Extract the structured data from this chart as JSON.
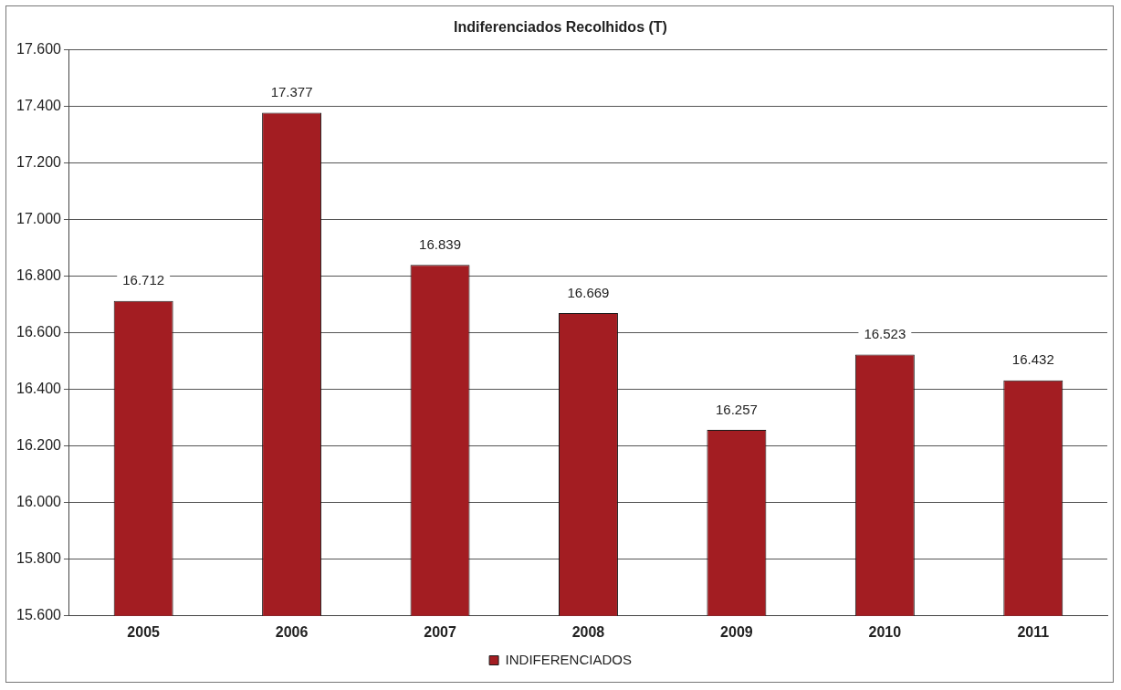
{
  "chart_data": {
    "type": "bar",
    "title": "Indiferenciados Recolhidos (T)",
    "categories": [
      "2005",
      "2006",
      "2007",
      "2008",
      "2009",
      "2010",
      "2011"
    ],
    "series": [
      {
        "name": "INDIFERENCIADOS",
        "color": "#a31d22",
        "values": [
          16712,
          17377,
          16839,
          16669,
          16257,
          16523,
          16432
        ],
        "value_labels": [
          "16.712",
          "17.377",
          "16.839",
          "16.669",
          "16.257",
          "16.523",
          "16.432"
        ]
      }
    ],
    "ylim": [
      15600,
      17600
    ],
    "yticks": [
      {
        "value": 15600,
        "label": "15.600"
      },
      {
        "value": 15800,
        "label": "15.800"
      },
      {
        "value": 16000,
        "label": "16.000"
      },
      {
        "value": 16200,
        "label": "16.200"
      },
      {
        "value": 16400,
        "label": "16.400"
      },
      {
        "value": 16600,
        "label": "16.600"
      },
      {
        "value": 16800,
        "label": "16.800"
      },
      {
        "value": 17000,
        "label": "17.000"
      },
      {
        "value": 17200,
        "label": "17.200"
      },
      {
        "value": 17400,
        "label": "17.400"
      },
      {
        "value": 17600,
        "label": "17.600"
      }
    ],
    "grid": "y",
    "legend": "bottom"
  }
}
